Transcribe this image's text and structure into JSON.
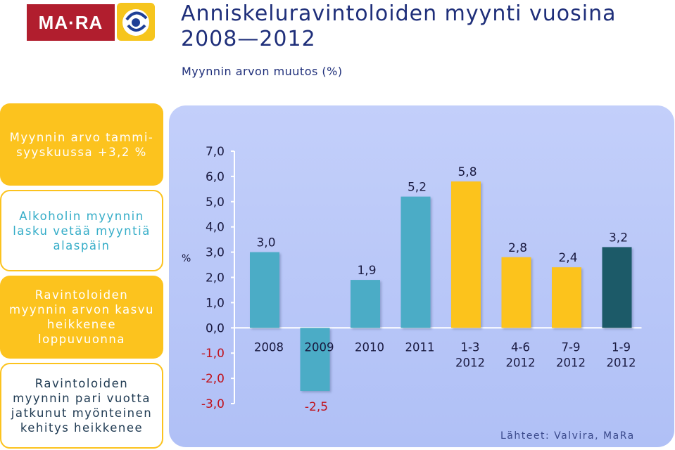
{
  "logo": {
    "text": "MA·RA",
    "emblem": "emblem-icon"
  },
  "title": "Anniskeluravintoloiden myynti vuosina 2008—2012",
  "subtitle": "Myynnin arvon muutos (%)",
  "panels": [
    {
      "text": "Myynnin arvo tammi-syyskuussa +3,2 %"
    },
    {
      "text": "Alkoholin myynnin lasku vetää myyntiä alaspäin"
    },
    {
      "text": "Ravintoloiden myynnin arvon kasvu heikkenee loppuvuonna"
    },
    {
      "text": "Ravintoloiden myynnin pari vuotta jatkunut myönteinen kehitys heikkenee"
    }
  ],
  "source": "Lähteet: Valvira, MaRa",
  "colors": {
    "blue": "#4bacc6",
    "yellow": "#fcc31e",
    "dark": "#1f5a68",
    "panel_yellow": "#fcc31e"
  },
  "chart_data": {
    "type": "bar",
    "ylabel": "%",
    "ylim": [
      -3,
      7
    ],
    "yticks": [
      7,
      6,
      5,
      4,
      3,
      2,
      1,
      0,
      -1,
      -2,
      -3
    ],
    "ytick_labels": [
      "7,0",
      "6,0",
      "5,0",
      "4,0",
      "3,0",
      "2,0",
      "1,0",
      "0,0",
      "-1,0",
      "-2,0",
      "-3,0"
    ],
    "categories": [
      {
        "line1": "2008",
        "line2": ""
      },
      {
        "line1": "2009",
        "line2": ""
      },
      {
        "line1": "2010",
        "line2": ""
      },
      {
        "line1": "2011",
        "line2": ""
      },
      {
        "line1": "1-3",
        "line2": "2012"
      },
      {
        "line1": "4-6",
        "line2": "2012"
      },
      {
        "line1": "7-9",
        "line2": "2012"
      },
      {
        "line1": "1-9",
        "line2": "2012"
      }
    ],
    "values": [
      3.0,
      -2.5,
      1.9,
      5.2,
      5.8,
      2.8,
      2.4,
      3.2
    ],
    "value_labels": [
      "3,0",
      "-2,5",
      "1,9",
      "5,2",
      "5,8",
      "2,8",
      "2,4",
      "3,2"
    ],
    "bar_colors": [
      "#4bacc6",
      "#4bacc6",
      "#4bacc6",
      "#4bacc6",
      "#fcc31e",
      "#fcc31e",
      "#fcc31e",
      "#1f5a68"
    ],
    "grid": false,
    "legend": "none"
  }
}
